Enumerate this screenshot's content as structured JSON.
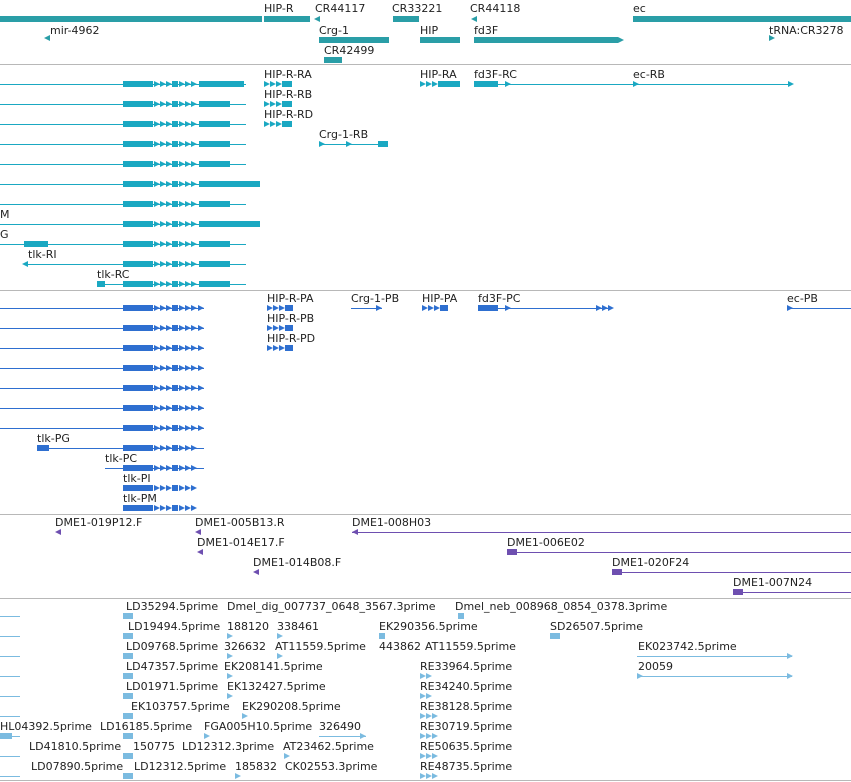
{
  "colors": {
    "track_gene": "#2a9ea7",
    "track_flybase": "#1aa8c2",
    "track_refseq": "#2e6fd0",
    "track_bac": "#6e4fb0",
    "track_est": "#7bbbe0",
    "divider": "#b8b8b8"
  },
  "tracks": [
    {
      "name": "genes",
      "color_key": "track_gene",
      "labels": [
        {
          "text": "HIP-R"
        },
        {
          "text": "CR44117"
        },
        {
          "text": "CR33221"
        },
        {
          "text": "CR44118"
        },
        {
          "text": "ec"
        },
        {
          "text": "mir-4962"
        },
        {
          "text": "Crg-1"
        },
        {
          "text": "HIP"
        },
        {
          "text": "fd3F"
        },
        {
          "text": "tRNA:CR3278"
        },
        {
          "text": "CR42499"
        }
      ]
    },
    {
      "name": "flybase-transcripts",
      "color_key": "track_flybase",
      "labels": [
        {
          "text": "HIP-R-RA"
        },
        {
          "text": "HIP-RA"
        },
        {
          "text": "fd3F-RC"
        },
        {
          "text": "ec-RB"
        },
        {
          "text": "HIP-R-RB"
        },
        {
          "text": "HIP-R-RD"
        },
        {
          "text": "Crg-1-RB"
        },
        {
          "text": "M"
        },
        {
          "text": "G"
        },
        {
          "text": "tlk-RI"
        },
        {
          "text": "tlk-RC"
        }
      ]
    },
    {
      "name": "refseq-transcripts",
      "color_key": "track_refseq",
      "labels": [
        {
          "text": "HIP-R-PA"
        },
        {
          "text": "Crg-1-PB"
        },
        {
          "text": "HIP-PA"
        },
        {
          "text": "fd3F-PC"
        },
        {
          "text": "ec-PB"
        },
        {
          "text": "HIP-R-PB"
        },
        {
          "text": "HIP-R-PD"
        },
        {
          "text": "tlk-PG"
        },
        {
          "text": "tlk-PC"
        },
        {
          "text": "tlk-PI"
        },
        {
          "text": "tlk-PM"
        }
      ]
    },
    {
      "name": "bac-ends",
      "color_key": "track_bac",
      "labels": [
        {
          "text": "DME1-019P12.F"
        },
        {
          "text": "DME1-005B13.R"
        },
        {
          "text": "DME1-008H03"
        },
        {
          "text": "DME1-014E17.F"
        },
        {
          "text": "DME1-006E02"
        },
        {
          "text": "DME1-014B08.F"
        },
        {
          "text": "DME1-020F24"
        },
        {
          "text": "DME1-007N24"
        }
      ]
    },
    {
      "name": "est-alignments",
      "color_key": "track_est",
      "labels": [
        {
          "text": "LD35294.5prime"
        },
        {
          "text": "Dmel_dig_007737_0648_3567.3prime"
        },
        {
          "text": "Dmel_neb_008968_0854_0378.3prime"
        },
        {
          "text": "LD19494.5prime"
        },
        {
          "text": "188120"
        },
        {
          "text": "338461"
        },
        {
          "text": "EK290356.5prime"
        },
        {
          "text": "SD26507.5prime"
        },
        {
          "text": "LD09768.5prime"
        },
        {
          "text": "326632"
        },
        {
          "text": "AT11559.5prime"
        },
        {
          "text": "443862"
        },
        {
          "text": "AT11559.5prime"
        },
        {
          "text": "EK023742.5prime"
        },
        {
          "text": "LD47357.5prime"
        },
        {
          "text": "EK208141.5prime"
        },
        {
          "text": "RE33964.5prime"
        },
        {
          "text": "20059"
        },
        {
          "text": "LD01971.5prime"
        },
        {
          "text": "EK132427.5prime"
        },
        {
          "text": "RE34240.5prime"
        },
        {
          "text": "EK103757.5prime"
        },
        {
          "text": "EK290208.5prime"
        },
        {
          "text": "RE38128.5prime"
        },
        {
          "text": "HL04392.5prime"
        },
        {
          "text": "LD16185.5prime"
        },
        {
          "text": "FGA005H10.5prime"
        },
        {
          "text": "326490"
        },
        {
          "text": "RE30719.5prime"
        },
        {
          "text": "LD41810.5prime"
        },
        {
          "text": "150775"
        },
        {
          "text": "LD12312.3prime"
        },
        {
          "text": "AT23462.5prime"
        },
        {
          "text": "RE50635.5prime"
        },
        {
          "text": "LD07890.5prime"
        },
        {
          "text": "LD12312.5prime"
        },
        {
          "text": "185832"
        },
        {
          "text": "CK02553.3prime"
        },
        {
          "text": "RE48735.5prime"
        }
      ]
    }
  ]
}
